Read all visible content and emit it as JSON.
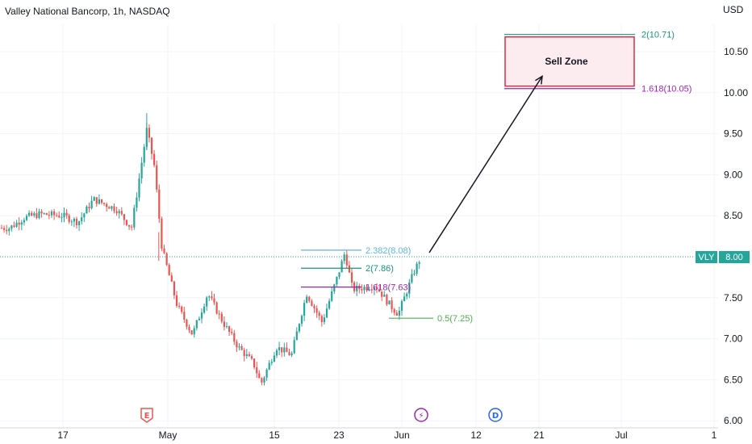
{
  "header": {
    "title": "Valley National Bancorp, 1h, NASDAQ",
    "currency": "USD"
  },
  "colors": {
    "up": "#26a69a",
    "down": "#ef5350",
    "fib_blue": "#5fb4e0",
    "fib_teal": "#15957f",
    "fib_purple": "#9c27b0",
    "fib_green": "#4caf50",
    "sell_border": "#d32f4a",
    "sell_fill": "#fdecef",
    "price_line": "#26a69a"
  },
  "price_badge": {
    "symbol": "VLY",
    "value": "8.00"
  },
  "chart_data": {
    "type": "candlestick",
    "title": "Valley National Bancorp, 1h, NASDAQ",
    "ylabel": "USD",
    "ylim": [
      6.0,
      10.75
    ],
    "y_ticks": [
      "6.00",
      "6.50",
      "7.00",
      "7.50",
      "8.00",
      "8.50",
      "9.00",
      "9.50",
      "10.00",
      "10.50"
    ],
    "x_ticks": [
      "17",
      "May",
      "15",
      "23",
      "Jun",
      "12",
      "21",
      "Jul",
      "1"
    ],
    "last_price": 8.0,
    "price_path": [
      {
        "x": "Apr 10",
        "y": 8.35
      },
      {
        "x": "Apr 12",
        "y": 8.48
      },
      {
        "x": "Apr 14",
        "y": 8.52
      },
      {
        "x": "Apr 17",
        "y": 8.5
      },
      {
        "x": "Apr 19",
        "y": 8.42
      },
      {
        "x": "Apr 21",
        "y": 8.7
      },
      {
        "x": "Apr 24",
        "y": 8.58
      },
      {
        "x": "Apr 26",
        "y": 8.35
      },
      {
        "x": "Apr 27",
        "y": 8.95
      },
      {
        "x": "Apr 28",
        "y": 9.55
      },
      {
        "x": "Apr 29",
        "y": 9.1
      },
      {
        "x": "Apr 30",
        "y": 8.1
      },
      {
        "x": "May 2",
        "y": 7.4
      },
      {
        "x": "May 4",
        "y": 7.05
      },
      {
        "x": "May 6",
        "y": 7.55
      },
      {
        "x": "May 8",
        "y": 7.2
      },
      {
        "x": "May 10",
        "y": 6.9
      },
      {
        "x": "May 12",
        "y": 6.7
      },
      {
        "x": "May 13",
        "y": 6.45
      },
      {
        "x": "May 15",
        "y": 6.9
      },
      {
        "x": "May 17",
        "y": 6.8
      },
      {
        "x": "May 18",
        "y": 7.2
      },
      {
        "x": "May 19",
        "y": 7.55
      },
      {
        "x": "May 21",
        "y": 7.2
      },
      {
        "x": "May 23",
        "y": 7.75
      },
      {
        "x": "May 24",
        "y": 8.05
      },
      {
        "x": "May 25",
        "y": 7.6
      },
      {
        "x": "May 28",
        "y": 7.65
      },
      {
        "x": "May 30",
        "y": 7.4
      },
      {
        "x": "May 31",
        "y": 7.3
      },
      {
        "x": "Jun 1",
        "y": 7.55
      },
      {
        "x": "Jun 2",
        "y": 7.8
      },
      {
        "x": "Jun 3",
        "y": 8.0
      }
    ],
    "fib_levels": [
      {
        "label": "2.382(8.08)",
        "value": 8.08,
        "color": "fib_blue"
      },
      {
        "label": "2(7.86)",
        "value": 7.86,
        "color": "fib_teal"
      },
      {
        "label": "1.618(7.63)",
        "value": 7.63,
        "color": "fib_purple"
      },
      {
        "label": "0.5(7.25)",
        "value": 7.25,
        "color": "fib_green"
      },
      {
        "label": "2(10.71)",
        "value": 10.71,
        "color": "fib_teal"
      },
      {
        "label": "1.618(10.05)",
        "value": 10.05,
        "color": "fib_purple"
      }
    ],
    "sell_zone": {
      "label": "Sell Zone",
      "top": 10.68,
      "bottom": 10.08
    },
    "event_markers": [
      {
        "letter": "E",
        "x": "Apr 29",
        "kind": "earnings"
      },
      {
        "letter": "⚡",
        "x": "Jun 3",
        "kind": "split"
      },
      {
        "letter": "D",
        "x": "Jun 14",
        "kind": "dividend"
      }
    ]
  }
}
